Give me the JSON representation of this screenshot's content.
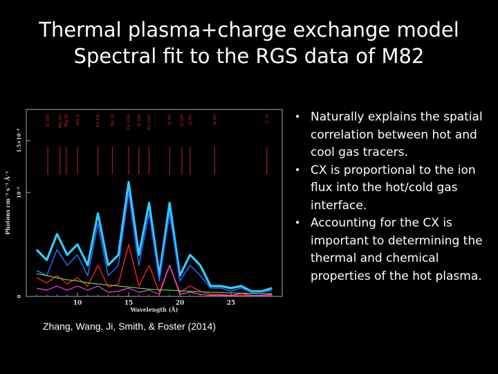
{
  "title": {
    "line1": "Thermal plasma+charge exchange model",
    "line2": "Spectral fit to the RGS data of M82"
  },
  "figure": {
    "ylabel": "Photons cm⁻² s⁻¹ Å⁻¹",
    "xlabel": "Wavelength (Å)",
    "ytick_labels": [
      "0",
      "10⁻⁴",
      "1.5×10⁻⁴"
    ],
    "xtick_labels": [
      "10",
      "15",
      "20",
      "25"
    ],
    "ion_labels": [
      "Si XIII",
      "Mg XII",
      "Mg XI",
      "Na X",
      "Fe XX",
      "Ne IX",
      "Fe XVII",
      "O VIII",
      "Fe XVII",
      "O VII",
      "O VIII",
      "O VII",
      "N VII",
      "C VI"
    ],
    "colors": {
      "data": "#1a6bff",
      "data_fill": "#33ccff",
      "model_total": "#ff2020",
      "model_thermal": "#ff8800",
      "model_cx": "#ff44ff",
      "continuum": "#55dd33",
      "ion_ticks": "#cc2222"
    }
  },
  "chart_data": {
    "type": "line",
    "xlabel": "Wavelength (Å)",
    "ylabel": "Photons cm⁻² s⁻¹ Å⁻¹",
    "xlim": [
      5,
      30
    ],
    "ylim": [
      0,
      0.00018
    ],
    "x": [
      6,
      7,
      8,
      9,
      10,
      11,
      12,
      13,
      14,
      15,
      16,
      17,
      18,
      19,
      20,
      21,
      22,
      23,
      24,
      25,
      26,
      27,
      28,
      29
    ],
    "series": [
      {
        "values": [
          4.5e-05,
          3.5e-05,
          6e-05,
          4e-05,
          5e-05,
          3e-05,
          8e-05,
          3e-05,
          4e-05,
          0.00011,
          4e-05,
          9e-05,
          2e-05,
          9e-05,
          2e-05,
          4e-05,
          3e-05,
          1e-05,
          1e-05,
          8e-06,
          1e-05,
          5e-06,
          5e-06,
          8e-06
        ]
      },
      {
        "values": [
          2.5e-05,
          2e-05,
          4.5e-05,
          3e-05,
          4e-05,
          2e-05,
          7e-05,
          2e-05,
          3e-05,
          0.0001,
          3e-05,
          8e-05,
          1.5e-05,
          8e-05,
          1.5e-05,
          3e-05,
          2e-05,
          8e-06,
          8e-06,
          5e-06,
          8e-06,
          4e-06,
          4e-06,
          6e-06
        ]
      },
      {
        "values": [
          1.8e-05,
          1.3e-05,
          2e-05,
          1.2e-05,
          1.8e-05,
          1e-05,
          3e-05,
          9e-06,
          1.2e-05,
          5e-05,
          1e-05,
          3e-05,
          4e-06,
          3e-05,
          4e-06,
          1e-05,
          5e-06,
          2e-06,
          2e-06,
          1e-06,
          1e-06,
          1e-06,
          1e-06,
          1e-06
        ]
      },
      {
        "values": [
          8e-06,
          6e-06,
          1e-05,
          6e-06,
          1e-05,
          6e-06,
          1e-05,
          4e-06,
          5e-06,
          8e-06,
          4e-06,
          6e-06,
          2e-06,
          3e-05,
          2e-06,
          4e-06,
          2e-06,
          1e-06,
          1e-06,
          1e-06,
          3e-06,
          1e-06,
          1e-06,
          2e-06
        ]
      },
      {
        "values": [
          2.2e-05,
          2e-05,
          1.8e-05,
          1.6e-05,
          1.5e-05,
          1.3e-05,
          1.2e-05,
          1.1e-05,
          1e-05,
          9e-06,
          8e-06,
          7e-06,
          6.5e-06,
          6e-06,
          5.5e-06,
          5e-06,
          4.5e-06,
          4e-06,
          3.8e-06,
          3.5e-06,
          3.2e-06,
          3e-06,
          2.8e-06,
          2.6e-06
        ]
      }
    ]
  },
  "caption": "Zhang, Wang, Ji, Smith, & Foster (2014)",
  "bullets": {
    "marker": "•",
    "items": [
      "Naturally explains the spatial correlation between hot and cool gas tracers.",
      "CX is proportional to the ion flux into the hot/cold gas interface.",
      "Accounting for the CX is important to determining the thermal and chemical properties of the hot plasma."
    ]
  }
}
